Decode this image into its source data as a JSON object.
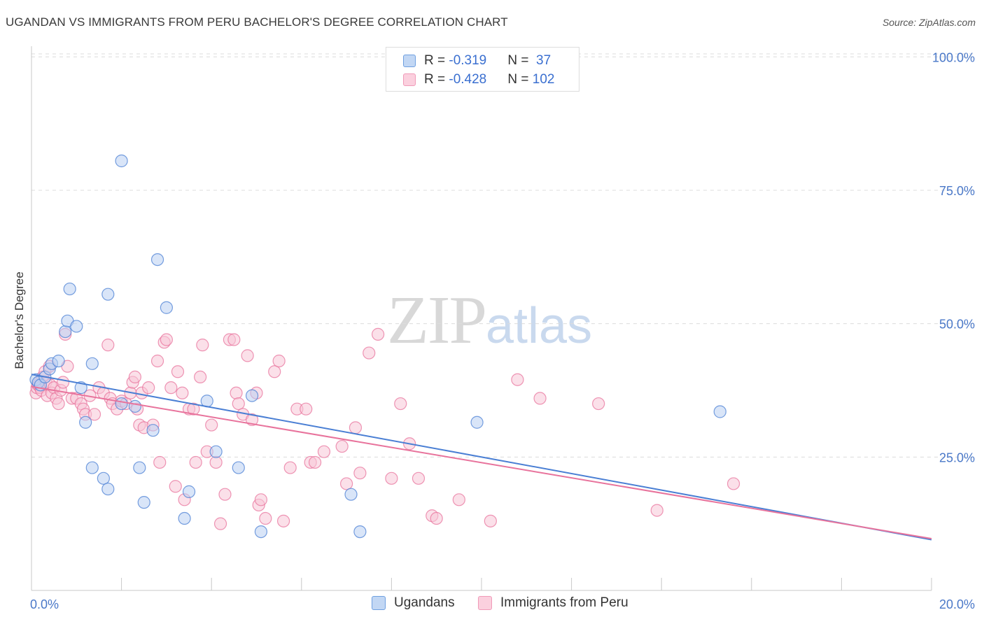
{
  "header": {
    "title": "UGANDAN VS IMMIGRANTS FROM PERU BACHELOR'S DEGREE CORRELATION CHART",
    "source": "Source: ZipAtlas.com"
  },
  "watermark": {
    "zip": "ZIP",
    "atlas": "atlas"
  },
  "legend": {
    "rows": [
      {
        "r_label": "R = ",
        "r_value": "-0.319",
        "n_label": "N = ",
        "n_value": " 37",
        "color": "#6e9fe0"
      },
      {
        "r_label": "R = ",
        "r_value": "-0.428",
        "n_label": "N = ",
        "n_value": "102",
        "color": "#f09ab8"
      }
    ]
  },
  "bottom_legend": {
    "items": [
      {
        "label": "Ugandans",
        "color": "#6e9fe0"
      },
      {
        "label": "Immigrants from Peru",
        "color": "#f09ab8"
      }
    ]
  },
  "chart_data": {
    "type": "scatter",
    "title": "UGANDAN VS IMMIGRANTS FROM PERU BACHELOR'S DEGREE CORRELATION CHART",
    "xlabel": "",
    "ylabel": "Bachelor's Degree",
    "xlim": [
      0,
      20
    ],
    "ylim": [
      0,
      102
    ],
    "x_tick_labels": [
      "0.0%",
      "20.0%"
    ],
    "y_tick_labels": [
      "25.0%",
      "50.0%",
      "75.0%",
      "100.0%"
    ],
    "y_ticks": [
      25,
      50,
      75,
      100
    ],
    "grid": true,
    "colors": {
      "ugandans": "#4a7fd4",
      "peru": "#e8739c",
      "ugandans_fill": "#b9d0f2",
      "peru_fill": "#f8c6d7"
    },
    "series": [
      {
        "name": "Ugandans",
        "x": [
          0.1,
          0.15,
          0.2,
          0.3,
          0.4,
          0.45,
          0.6,
          0.75,
          0.8,
          0.85,
          1.0,
          1.1,
          1.2,
          1.35,
          1.6,
          1.7,
          1.35,
          2.0,
          1.7,
          2.3,
          2.0,
          2.4,
          2.5,
          2.7,
          2.8,
          3.0,
          3.4,
          3.5,
          3.9,
          4.1,
          4.6,
          4.9,
          5.1,
          7.1,
          7.3,
          9.9,
          15.3
        ],
        "y": [
          39.5,
          39,
          38.5,
          40,
          41.5,
          42.5,
          43,
          48.5,
          50.5,
          56.5,
          49.5,
          38,
          31.5,
          23,
          21,
          19,
          42.5,
          80.5,
          55.5,
          34.5,
          35,
          23,
          16.5,
          30,
          62,
          53,
          13.5,
          18.5,
          35.5,
          26,
          23,
          36.5,
          11,
          18,
          11,
          31.5,
          33.5
        ]
      },
      {
        "name": "Immigrants from Peru",
        "x": [
          0.1,
          0.12,
          0.15,
          0.18,
          0.2,
          0.22,
          0.25,
          0.3,
          0.32,
          0.35,
          0.4,
          0.42,
          0.45,
          0.5,
          0.55,
          0.6,
          0.65,
          0.7,
          0.75,
          0.8,
          0.9,
          1.0,
          1.1,
          1.15,
          1.2,
          1.3,
          1.4,
          1.5,
          1.6,
          1.7,
          1.75,
          1.8,
          1.9,
          2.0,
          2.1,
          2.2,
          2.25,
          2.3,
          2.35,
          2.4,
          2.45,
          2.5,
          2.6,
          2.7,
          2.8,
          2.85,
          2.95,
          3.0,
          3.1,
          3.2,
          3.25,
          3.35,
          3.4,
          3.5,
          3.6,
          3.65,
          3.75,
          3.8,
          3.9,
          4.0,
          4.1,
          4.2,
          4.3,
          4.4,
          4.5,
          4.55,
          4.6,
          4.7,
          4.8,
          4.9,
          5.0,
          5.05,
          5.1,
          5.2,
          5.4,
          5.5,
          5.6,
          5.75,
          5.9,
          6.1,
          6.2,
          6.3,
          6.5,
          6.9,
          7.0,
          7.2,
          7.3,
          7.5,
          7.7,
          8.0,
          8.2,
          8.4,
          8.6,
          8.9,
          9.0,
          9.5,
          10.2,
          10.8,
          11.3,
          12.6,
          13.9,
          15.6
        ],
        "y": [
          37,
          38,
          38.5,
          39,
          38,
          37.5,
          40,
          41,
          39,
          36.5,
          42,
          38.5,
          37,
          38,
          36,
          35,
          37.5,
          39,
          48,
          42,
          36,
          36,
          35,
          34,
          33,
          36.5,
          33,
          38,
          37,
          46,
          36,
          35,
          34,
          35.5,
          35,
          37,
          39,
          40,
          34,
          31,
          37,
          30.5,
          38,
          31,
          43,
          24,
          46.5,
          47,
          38,
          19.5,
          41,
          37,
          17,
          34,
          34,
          24,
          40,
          46,
          26,
          31,
          24,
          12.5,
          18,
          47,
          47,
          37,
          35,
          33,
          44,
          32,
          37,
          16,
          17,
          13.5,
          41,
          43,
          13,
          23,
          34,
          34,
          24,
          24,
          26,
          27,
          20,
          30.5,
          22,
          44.5,
          48,
          21,
          35,
          27.5,
          21,
          14,
          13.5,
          17,
          13,
          39.5,
          36,
          35,
          15,
          20
        ]
      }
    ],
    "trendlines": [
      {
        "series": "Ugandans",
        "x": [
          0,
          20
        ],
        "y": [
          40.5,
          9.5
        ]
      },
      {
        "series": "Immigrants from Peru",
        "x": [
          0,
          20
        ],
        "y": [
          38.2,
          9.7
        ]
      }
    ]
  }
}
